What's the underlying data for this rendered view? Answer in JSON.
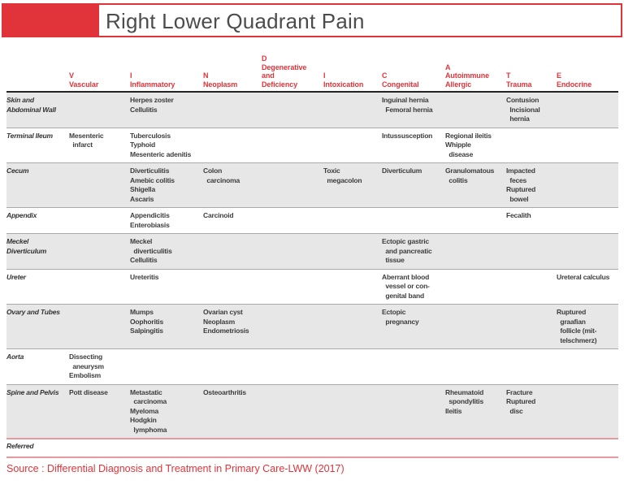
{
  "banner": {
    "title": "Right Lower Quadrant Pain"
  },
  "source": "Source : Differential Diagnosis and Treatment in Primary Care-LWW (2017)",
  "colors": {
    "accent_red": "#e0343a",
    "row_gray": "#e7e7e7",
    "pink_rule": "#e49a9e",
    "dark_rule": "#242424",
    "cell_text": "#3d3d3d"
  },
  "table": {
    "columns": [
      {
        "key": "vascular",
        "letter": "V",
        "label": "Vascular"
      },
      {
        "key": "inflammatory",
        "letter": "I",
        "label": "Inflammatory"
      },
      {
        "key": "neoplasm",
        "letter": "N",
        "label": "Neoplasm"
      },
      {
        "key": "degenerative",
        "letter": "D",
        "label": "Degenerative\nand\nDeficiency"
      },
      {
        "key": "intoxication",
        "letter": "I",
        "label": "Intoxication"
      },
      {
        "key": "congenital",
        "letter": "C",
        "label": "Congenital"
      },
      {
        "key": "autoimmune",
        "letter": "A",
        "label": "Autoimmune\nAllergic"
      },
      {
        "key": "trauma",
        "letter": "T",
        "label": "Trauma"
      },
      {
        "key": "endocrine",
        "letter": "E",
        "label": "Endocrine"
      }
    ],
    "rows": [
      {
        "label": "Skin and\nAbdominal Wall",
        "cells": {
          "inflammatory": "Herpes zoster\nCellulitis",
          "congenital": "Inguinal hernia\n  Femoral hernia",
          "trauma": "Contusion\n  Incisional\n  hernia"
        }
      },
      {
        "label": "Terminal Ileum",
        "cells": {
          "vascular": "Mesenteric\n  infarct",
          "inflammatory": "Tuberculosis\nTyphoid\nMesenteric adenitis",
          "congenital": "Intussusception",
          "autoimmune": "Regional ileitis\nWhipple\n  disease"
        }
      },
      {
        "label": "Cecum",
        "cells": {
          "inflammatory": "Diverticulitis\nAmebic colitis\nShigella\nAscaris",
          "neoplasm": "Colon\n  carcinoma",
          "intoxication": "Toxic\n  megacolon",
          "congenital": "Diverticulum",
          "autoimmune": "Granulomatous\n  colitis",
          "trauma": "Impacted\n  feces\nRuptured\n  bowel"
        }
      },
      {
        "label": "Appendix",
        "cells": {
          "inflammatory": "Appendicitis\nEnterobiasis",
          "neoplasm": "Carcinoid",
          "trauma": "Fecalith"
        }
      },
      {
        "label": "Meckel\nDiverticulum",
        "cells": {
          "inflammatory": "Meckel\n  diverticulitis\nCellulitis",
          "congenital": "Ectopic gastric\n  and pancreatic\n  tissue"
        }
      },
      {
        "label": "Ureter",
        "cells": {
          "inflammatory": "Ureteritis",
          "congenital": "Aberrant blood\n  vessel or con-\n  genital band",
          "endocrine": "Ureteral calculus"
        }
      },
      {
        "label": "Ovary and Tubes",
        "cells": {
          "inflammatory": "Mumps\nOophoritis\nSalpingitis",
          "neoplasm": "Ovarian cyst\nNeoplasm\nEndometriosis",
          "congenital": "Ectopic\n  pregnancy",
          "endocrine": "Ruptured\n  graafian\n  follicle (mit-\n  telschmerz)"
        }
      },
      {
        "label": "Aorta",
        "cells": {
          "vascular": "Dissecting\n  aneurysm\nEmbolism"
        }
      },
      {
        "label": "Spine and Pelvis",
        "cells": {
          "vascular": "Pott disease",
          "inflammatory": "Metastatic\n  carcinoma\nMyeloma\nHodgkin\n  lymphoma",
          "neoplasm": "Osteoarthritis",
          "autoimmune": "Rheumatoid\n  spondylitis\nIleitis",
          "trauma": "Fracture\nRuptured\n  disc"
        }
      },
      {
        "label": "Referred",
        "cells": {}
      }
    ]
  }
}
